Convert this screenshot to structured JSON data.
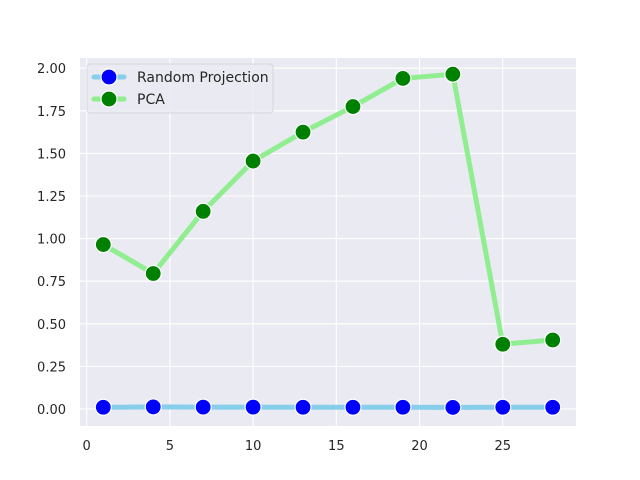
{
  "chart_data": {
    "type": "line",
    "title": "",
    "xlabel": "",
    "ylabel": "",
    "xlim": [
      -0.4,
      29.4
    ],
    "ylim": [
      -0.1,
      2.06
    ],
    "xticks": [
      0,
      5,
      10,
      15,
      20,
      25
    ],
    "xtick_labels": [
      "0",
      "5",
      "10",
      "15",
      "20",
      "25"
    ],
    "yticks": [
      0.0,
      0.25,
      0.5,
      0.75,
      1.0,
      1.25,
      1.5,
      1.75,
      2.0
    ],
    "ytick_labels": [
      "0.00",
      "0.25",
      "0.50",
      "0.75",
      "1.00",
      "1.25",
      "1.50",
      "1.75",
      "2.00"
    ],
    "grid": true,
    "legend_position": "top-left",
    "x": [
      1,
      4,
      7,
      10,
      13,
      16,
      19,
      22,
      25,
      28
    ],
    "series": [
      {
        "name": "Random Projection",
        "line_color": "#87ceeb",
        "marker_color": "#0000ff",
        "values": [
          0.01,
          0.012,
          0.011,
          0.011,
          0.01,
          0.01,
          0.01,
          0.009,
          0.01,
          0.01
        ]
      },
      {
        "name": "PCA",
        "line_color": "#90ee90",
        "marker_color": "#008000",
        "values": [
          0.965,
          0.795,
          1.16,
          1.455,
          1.625,
          1.775,
          1.94,
          1.965,
          0.38,
          0.405
        ]
      }
    ]
  },
  "colors": {
    "plot_background": "#eaeaf2",
    "grid": "#ffffff",
    "text": "#262626"
  }
}
